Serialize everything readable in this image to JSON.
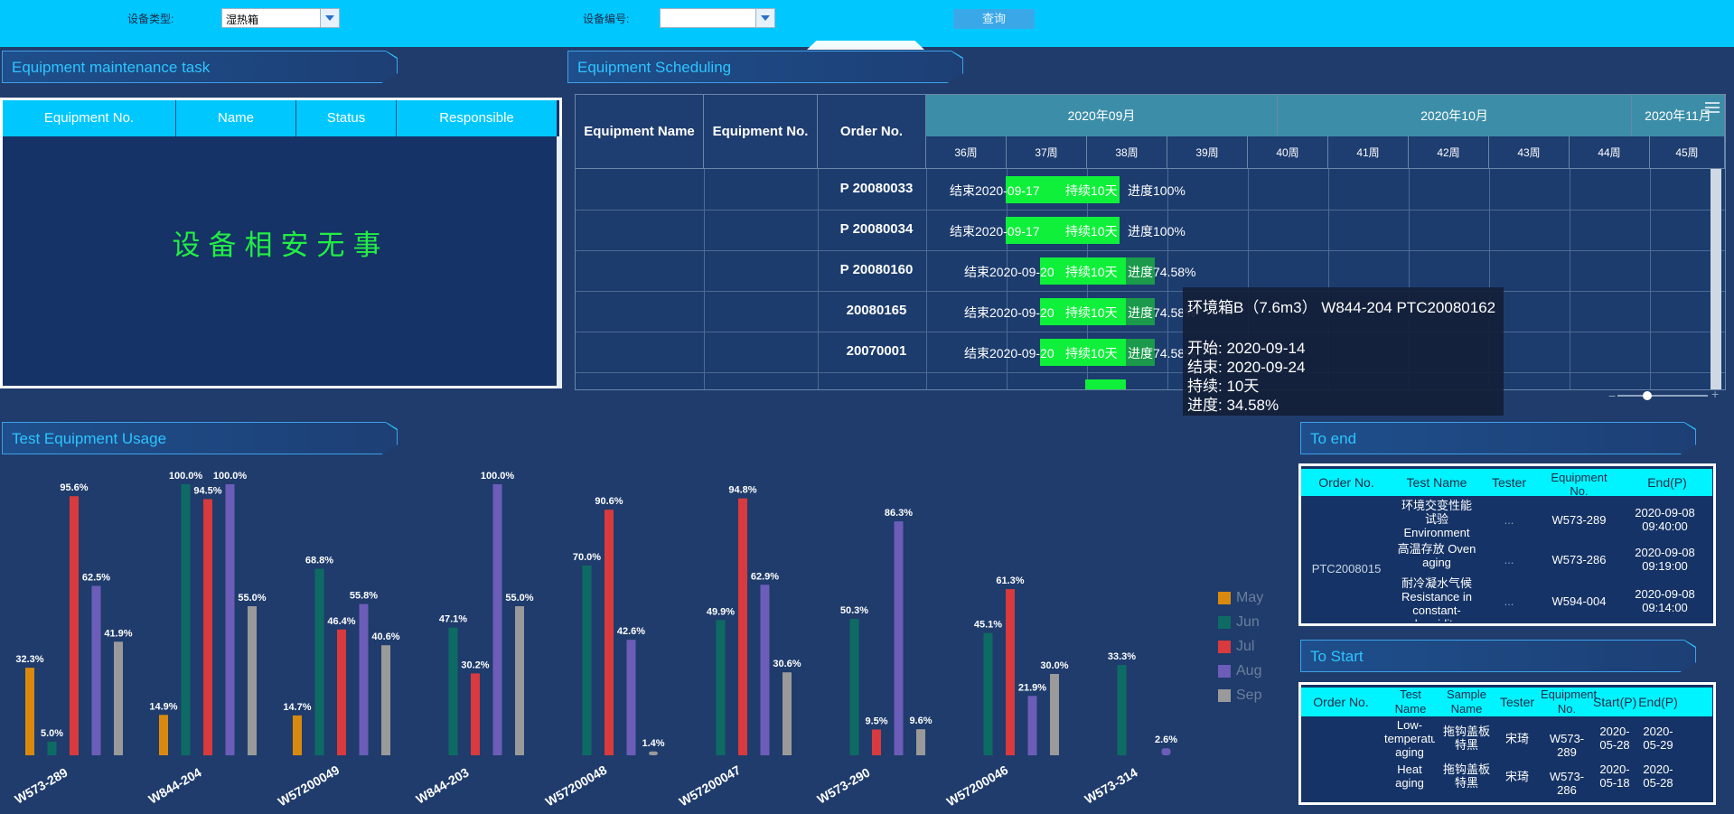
{
  "filters": {
    "type_label": "设备类型:",
    "type_value": "湿热箱",
    "no_label": "设备编号:",
    "no_value": "",
    "query_label": "查询"
  },
  "maintenance": {
    "title": "Equipment maintenance task",
    "columns": [
      "Equipment No.",
      "Name",
      "Status",
      "Responsible"
    ],
    "empty_text": "设备相安无事"
  },
  "scheduling": {
    "title": "Equipment Scheduling",
    "columns": [
      "Equipment Name",
      "Equipment No.",
      "Order No."
    ],
    "months": [
      "2020年09月",
      "2020年10月",
      "2020年11月"
    ],
    "weeks": [
      "36周",
      "37周",
      "38周",
      "39周",
      "40周",
      "41周",
      "42周",
      "43周",
      "44周",
      "45周"
    ],
    "rows": [
      {
        "order": "P  20080033",
        "end_text": "结束2020-09-17",
        "bar_text": "持续10天",
        "progress_text": "进度100%"
      },
      {
        "order": "P  20080034",
        "end_text": "结束2020-09-17",
        "bar_text": "持续10天",
        "progress_text": "进度100%"
      },
      {
        "order": "P  20080160",
        "end_text": "结束2020-09-20",
        "bar_text": "持续10天",
        "progress_text": "进度74.58%"
      },
      {
        "order": "   20080165",
        "end_text": "结束2020-09-20",
        "bar_text": "持续10天",
        "progress_text": "进度74.58%"
      },
      {
        "order": "   20070001",
        "end_text": "结束2020-09-20",
        "bar_text": "持续10天",
        "progress_text": "进度74.58%"
      }
    ],
    "tooltip": {
      "line1": "环境箱B（7.6m3） W844-204 PTC20080162",
      "line2": "开始: 2020-09-14",
      "line3": "结束: 2020-09-24",
      "line4": "持续: 10天",
      "line5": "进度: 34.58%"
    }
  },
  "usage": {
    "title": "Test Equipment Usage"
  },
  "chart_data": {
    "type": "bar",
    "categories": [
      "W573-289",
      "W844-204",
      "W57200049",
      "W844-203",
      "W57200048",
      "W57200047",
      "W573-290",
      "W57200046",
      "W573-314"
    ],
    "series": [
      {
        "name": "May",
        "color": "#d98a0e",
        "values": [
          32.3,
          14.9,
          14.7,
          null,
          null,
          null,
          null,
          null,
          null
        ]
      },
      {
        "name": "Jun",
        "color": "#0e6b63",
        "values": [
          5.0,
          100.0,
          68.8,
          47.1,
          70.0,
          49.9,
          50.3,
          45.1,
          33.3
        ]
      },
      {
        "name": "Jul",
        "color": "#d83a3e",
        "values": [
          95.6,
          94.5,
          46.4,
          30.2,
          90.6,
          94.8,
          9.5,
          61.3,
          null
        ]
      },
      {
        "name": "Aug",
        "color": "#6c5db8",
        "values": [
          62.5,
          100.0,
          55.8,
          100.0,
          42.6,
          62.9,
          86.3,
          21.9,
          2.6
        ]
      },
      {
        "name": "Sep",
        "color": "#9a9a9a",
        "values": [
          41.9,
          55.0,
          40.6,
          55.0,
          1.4,
          30.6,
          9.6,
          30.0,
          null
        ]
      }
    ],
    "ylim": [
      0,
      100
    ],
    "legend": "right"
  },
  "to_end": {
    "title": "To end",
    "columns": [
      "Order No.",
      "Test Name",
      "Tester",
      "Equipment No.",
      "End(P)"
    ],
    "order": "PTC2008015",
    "rows": [
      {
        "test": "环境交变性能试验 Environment",
        "tester": "...",
        "equip": "W573-289",
        "end": "2020-09-08 09:40:00"
      },
      {
        "test": "高温存放 Oven aging",
        "tester": "...",
        "equip": "W573-286",
        "end": "2020-09-08 09:19:00"
      },
      {
        "test": "耐冷凝水气候 Resistance in constant-humidity",
        "tester": "...",
        "equip": "W594-004",
        "end": "2020-09-08 09:14:00"
      }
    ]
  },
  "to_start": {
    "title": "To Start",
    "columns": [
      "Order No.",
      "Test Name",
      "Sample Name",
      "Tester",
      "Equipment No.",
      "Start(P)",
      "End(P)"
    ],
    "rows": [
      {
        "test": "Low-temperature aging",
        "sample": "拖钩盖板特黑",
        "tester": "宋琦",
        "equip": "W573-289",
        "start": "2020-05-28",
        "end": "2020-05-29"
      },
      {
        "test": "Heat aging",
        "sample": "拖钩盖板特黑",
        "tester": "宋琦",
        "equip": "W573-286",
        "start": "2020-05-18",
        "end": "2020-05-28"
      }
    ]
  }
}
